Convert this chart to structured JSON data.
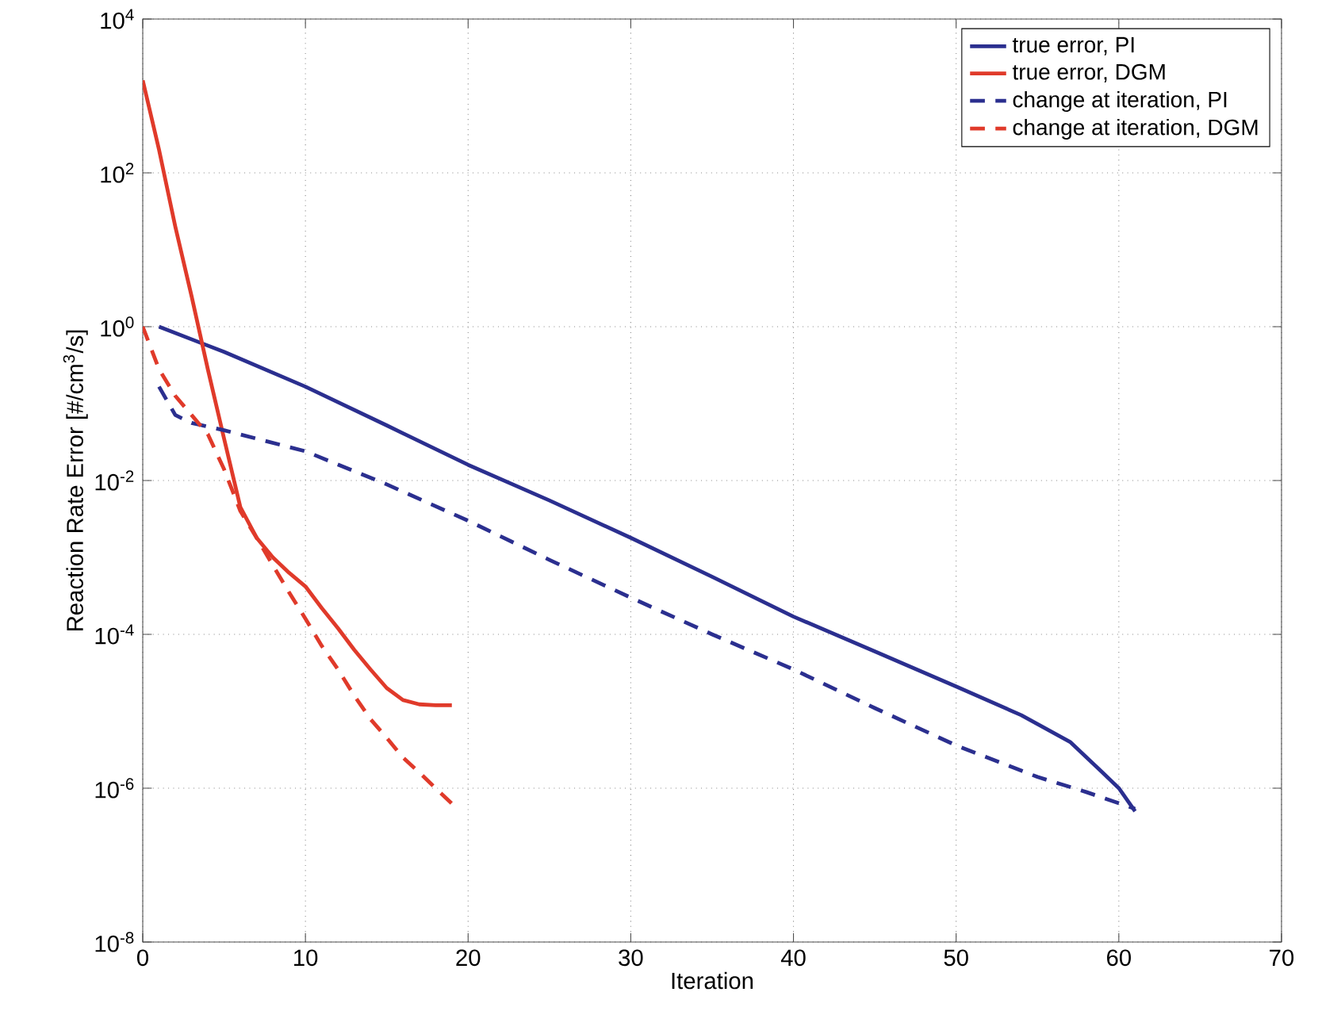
{
  "chart_data": {
    "type": "line",
    "xlabel": "Iteration",
    "ylabel": "Reaction Rate Error [#/cm$^{3}$/s]",
    "xlim": [
      0,
      70
    ],
    "xticks": [
      0,
      10,
      20,
      30,
      40,
      50,
      60,
      70
    ],
    "ylim": [
      1e-08,
      10000.0
    ],
    "yticks": [
      {
        "value": 1e-08,
        "label": "10$^{-8}$"
      },
      {
        "value": 1e-06,
        "label": "10$^{-6}$"
      },
      {
        "value": 0.0001,
        "label": "10$^{-4}$"
      },
      {
        "value": 0.01,
        "label": "10$^{-2}$"
      },
      {
        "value": 1,
        "label": "10$^{0}$"
      },
      {
        "value": 100,
        "label": "10$^{2}$"
      },
      {
        "value": 10000.0,
        "label": "10$^{4}$"
      }
    ],
    "log": "y",
    "grid": true,
    "legend": "top right",
    "series": [
      {
        "name": "true error, PI",
        "color": "#2b2f8f",
        "line_style": "solid",
        "x": [
          1,
          5,
          10,
          15,
          20,
          25,
          30,
          35,
          40,
          45,
          50,
          54,
          57,
          59,
          60,
          61
        ],
        "values": [
          1,
          0.47,
          0.166,
          0.052,
          0.016,
          0.0055,
          0.0018,
          0.00056,
          0.00017,
          6e-05,
          2.1e-05,
          8.9e-06,
          4e-06,
          1.6e-06,
          1e-06,
          5e-07
        ]
      },
      {
        "name": "true error, DGM",
        "color": "#e03a2a",
        "line_style": "solid",
        "x": [
          0,
          1,
          2,
          3,
          4,
          5,
          6,
          7,
          8,
          9,
          10,
          11,
          12,
          13,
          14,
          15,
          16,
          17,
          18,
          19
        ],
        "values": [
          1600,
          200,
          20,
          2.5,
          0.28,
          0.035,
          0.0045,
          0.0018,
          0.001,
          0.00063,
          0.00042,
          0.00022,
          0.00012,
          6.3e-05,
          3.5e-05,
          2e-05,
          1.4e-05,
          1.23e-05,
          1.2e-05,
          1.2e-05
        ]
      },
      {
        "name": "change at iteration, PI",
        "color": "#2b2f8f",
        "line_style": "dashed",
        "x": [
          1,
          2,
          3,
          5,
          10,
          15,
          20,
          25,
          30,
          35,
          40,
          45,
          50,
          55,
          58,
          61
        ],
        "values": [
          0.166,
          0.071,
          0.056,
          0.045,
          0.024,
          0.0089,
          0.003,
          0.00093,
          0.0003,
          0.0001,
          3.5e-05,
          1.1e-05,
          3.6e-06,
          1.4e-06,
          8.9e-07,
          5.4e-07
        ]
      },
      {
        "name": "change at iteration, DGM",
        "color": "#e03a2a",
        "line_style": "dashed",
        "x": [
          0,
          1,
          2,
          3,
          4,
          5,
          6,
          7,
          8,
          9,
          10,
          11,
          12,
          13,
          14,
          15,
          16,
          17,
          18,
          19
        ],
        "values": [
          1,
          0.28,
          0.126,
          0.071,
          0.04,
          0.014,
          0.004,
          0.0018,
          0.00079,
          0.00035,
          0.00016,
          7.1e-05,
          3.5e-05,
          1.6e-05,
          7.9e-06,
          4.5e-06,
          2.5e-06,
          1.6e-06,
          1e-06,
          6.3e-07
        ]
      }
    ]
  }
}
